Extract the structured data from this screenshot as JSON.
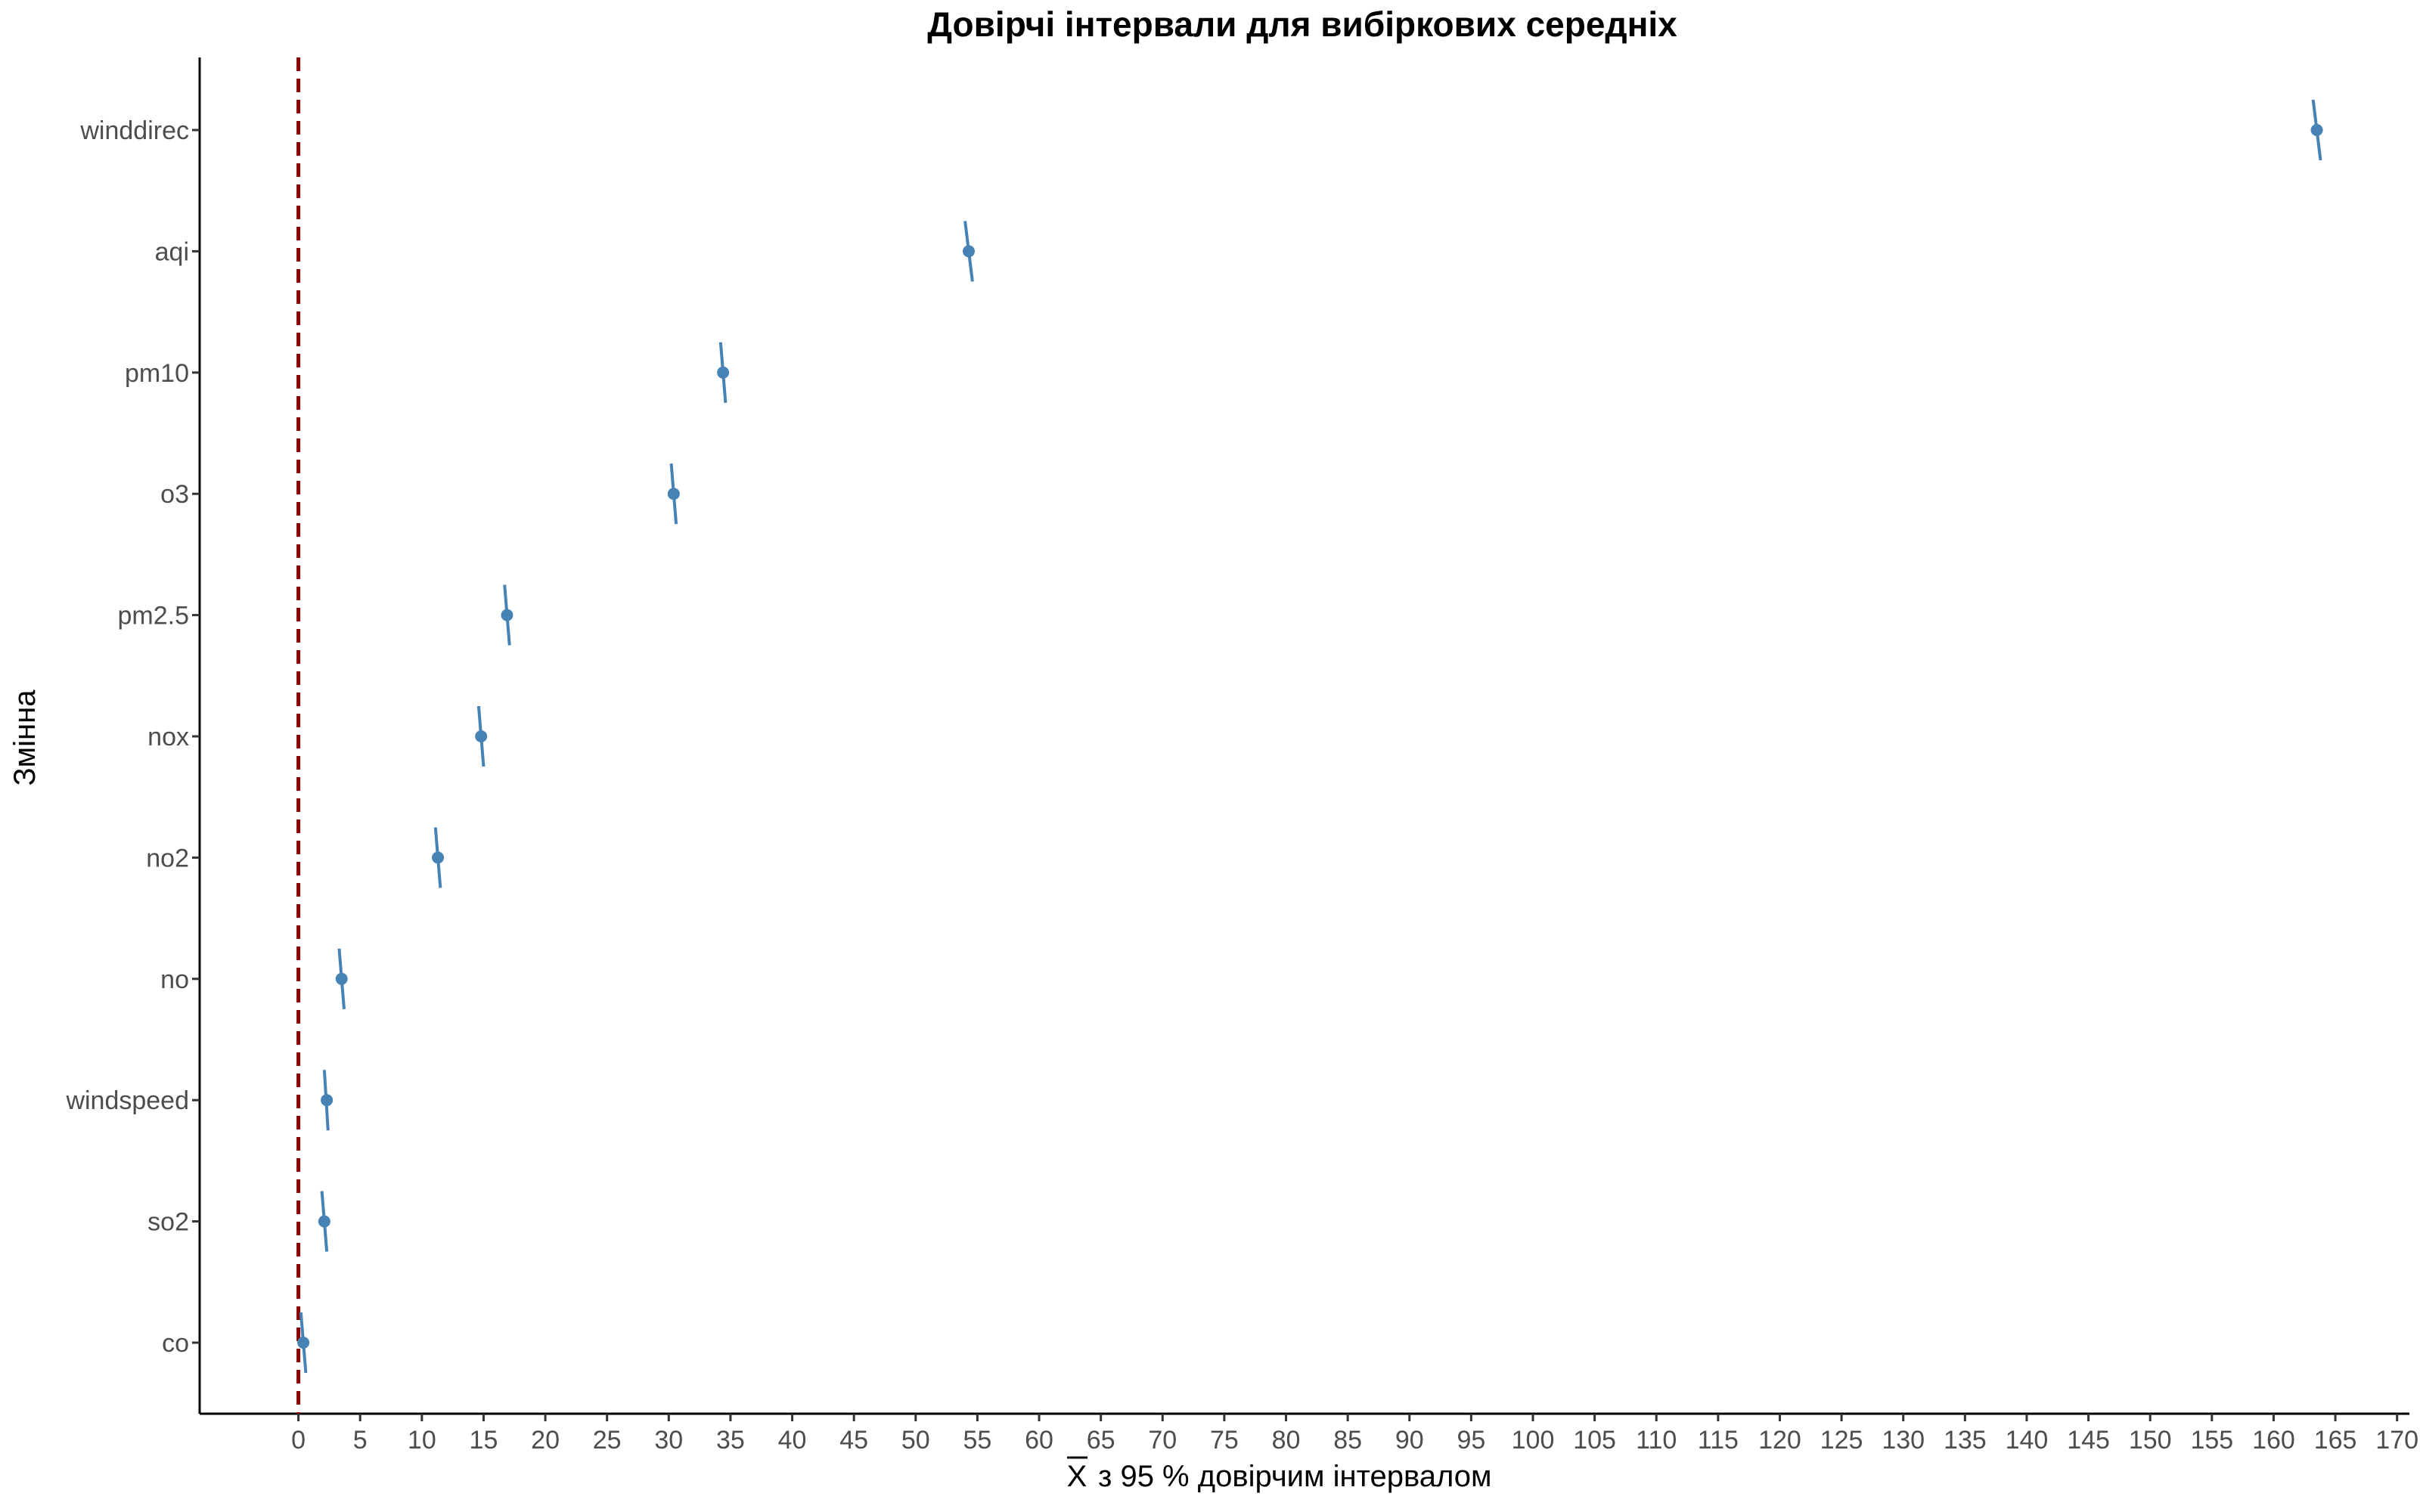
{
  "chart_data": {
    "type": "scatter",
    "title": "Довірчі інтервали для вибіркових середніх",
    "xlabel_symbol": "X",
    "xlabel": "з 95 %  довірчим інтервалом",
    "ylabel": "Змінна",
    "xlim": [
      -8,
      171
    ],
    "xticks": [
      0,
      5,
      10,
      15,
      20,
      25,
      30,
      35,
      40,
      45,
      50,
      55,
      60,
      65,
      70,
      75,
      80,
      85,
      90,
      95,
      100,
      105,
      110,
      115,
      120,
      125,
      130,
      135,
      140,
      145,
      150,
      155,
      160,
      165,
      170
    ],
    "reference_line": {
      "x": 0,
      "style": "dashed",
      "color": "#8b0000"
    },
    "point_color": "#4682b4",
    "grid": false,
    "legend": "none",
    "categories": [
      "winddirec",
      "aqi",
      "pm10",
      "o3",
      "pm2.5",
      "nox",
      "no2",
      "no",
      "windspeed",
      "so2",
      "co"
    ],
    "series": [
      {
        "points": [
          {
            "label": "winddirec",
            "mean": 163.5,
            "lower": 163.2,
            "upper": 163.8
          },
          {
            "label": "aqi",
            "mean": 54.3,
            "lower": 54.0,
            "upper": 54.6
          },
          {
            "label": "pm10",
            "mean": 34.4,
            "lower": 34.2,
            "upper": 34.6
          },
          {
            "label": "o3",
            "mean": 30.4,
            "lower": 30.2,
            "upper": 30.6
          },
          {
            "label": "pm2.5",
            "mean": 16.9,
            "lower": 16.7,
            "upper": 17.1
          },
          {
            "label": "nox",
            "mean": 14.8,
            "lower": 14.6,
            "upper": 15.0
          },
          {
            "label": "no2",
            "mean": 11.3,
            "lower": 11.1,
            "upper": 11.5
          },
          {
            "label": "no",
            "mean": 3.5,
            "lower": 3.3,
            "upper": 3.7
          },
          {
            "label": "windspeed",
            "mean": 2.3,
            "lower": 2.1,
            "upper": 2.4
          },
          {
            "label": "so2",
            "mean": 2.1,
            "lower": 1.9,
            "upper": 2.3
          },
          {
            "label": "co",
            "mean": 0.4,
            "lower": 0.2,
            "upper": 0.6
          }
        ]
      }
    ]
  }
}
